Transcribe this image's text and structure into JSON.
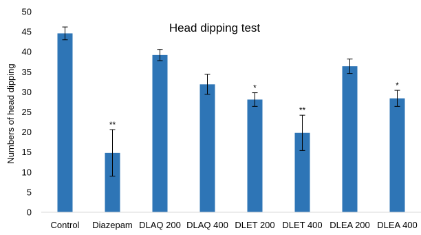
{
  "chart_data": {
    "type": "bar",
    "title": "Head dipping test",
    "xlabel": "",
    "ylabel": "Numbers of head dipping",
    "ylim": [
      0,
      50
    ],
    "yticks": [
      0,
      5,
      10,
      15,
      20,
      25,
      30,
      35,
      40,
      45,
      50
    ],
    "grid": false,
    "bar_color": "#2e75b6",
    "categories": [
      "Control",
      "Diazepam",
      "DLAQ 200",
      "DLAQ 400",
      "DLET 200",
      "DLET 400",
      "DLEA 200",
      "DLEA 400"
    ],
    "values": [
      44.6,
      14.8,
      39.2,
      31.9,
      28.1,
      19.8,
      36.4,
      28.4
    ],
    "errors": [
      1.6,
      5.8,
      1.4,
      2.5,
      1.7,
      4.4,
      1.8,
      2.0
    ],
    "significance": [
      "",
      "**",
      "",
      "",
      "*",
      "**",
      "",
      "*"
    ]
  }
}
